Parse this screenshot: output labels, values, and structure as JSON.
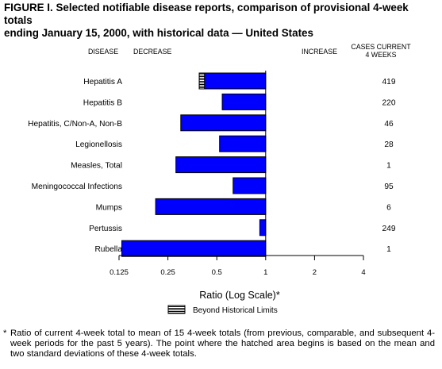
{
  "title_line1": "FIGURE I. Selected notifiable disease reports, comparison of provisional 4-week totals",
  "title_line2": "ending January 15, 2000, with historical data — United States",
  "headers": {
    "disease": "DISEASE",
    "decrease": "DECREASE",
    "increase": "INCREASE",
    "cases_line1": "CASES CURRENT",
    "cases_line2": "4 WEEKS"
  },
  "chart_data": {
    "type": "bar",
    "orientation": "horizontal",
    "xscale": "log2",
    "xlim": [
      0.125,
      4
    ],
    "xticks": [
      0.125,
      0.25,
      0.5,
      1,
      2,
      4
    ],
    "xtick_labels": [
      "0.125",
      "0.25",
      "0.5",
      "1",
      "2",
      "4"
    ],
    "xlabel": "Ratio (Log Scale)*",
    "baseline": 1,
    "categories": [
      "Hepatitis A",
      "Hepatitis B",
      "Hepatitis, C/Non-A, Non-B",
      "Legionellosis",
      "Measles, Total",
      "Meningococcal Infections",
      "Mumps",
      "Pertussis",
      "Rubella"
    ],
    "values": [
      0.39,
      0.54,
      0.3,
      0.52,
      0.28,
      0.63,
      0.21,
      0.92,
      0.13
    ],
    "beyond_limits_start": [
      0.42,
      null,
      null,
      null,
      null,
      null,
      null,
      null,
      null
    ],
    "cases": [
      "419",
      "220",
      "46",
      "28",
      "1",
      "95",
      "6",
      "249",
      "1"
    ],
    "bar_color": "#0000ff",
    "legend": {
      "label": "Beyond Historical Limits",
      "placement": "bottom-center"
    }
  },
  "footnote_star": "*",
  "footnote_text": "Ratio of current 4-week total to mean of 15 4-week totals (from previous, comparable, and subsequent 4-week periods for the past 5 years). The point where the hatched area begins is based on the mean and two standard deviations of these 4-week totals."
}
